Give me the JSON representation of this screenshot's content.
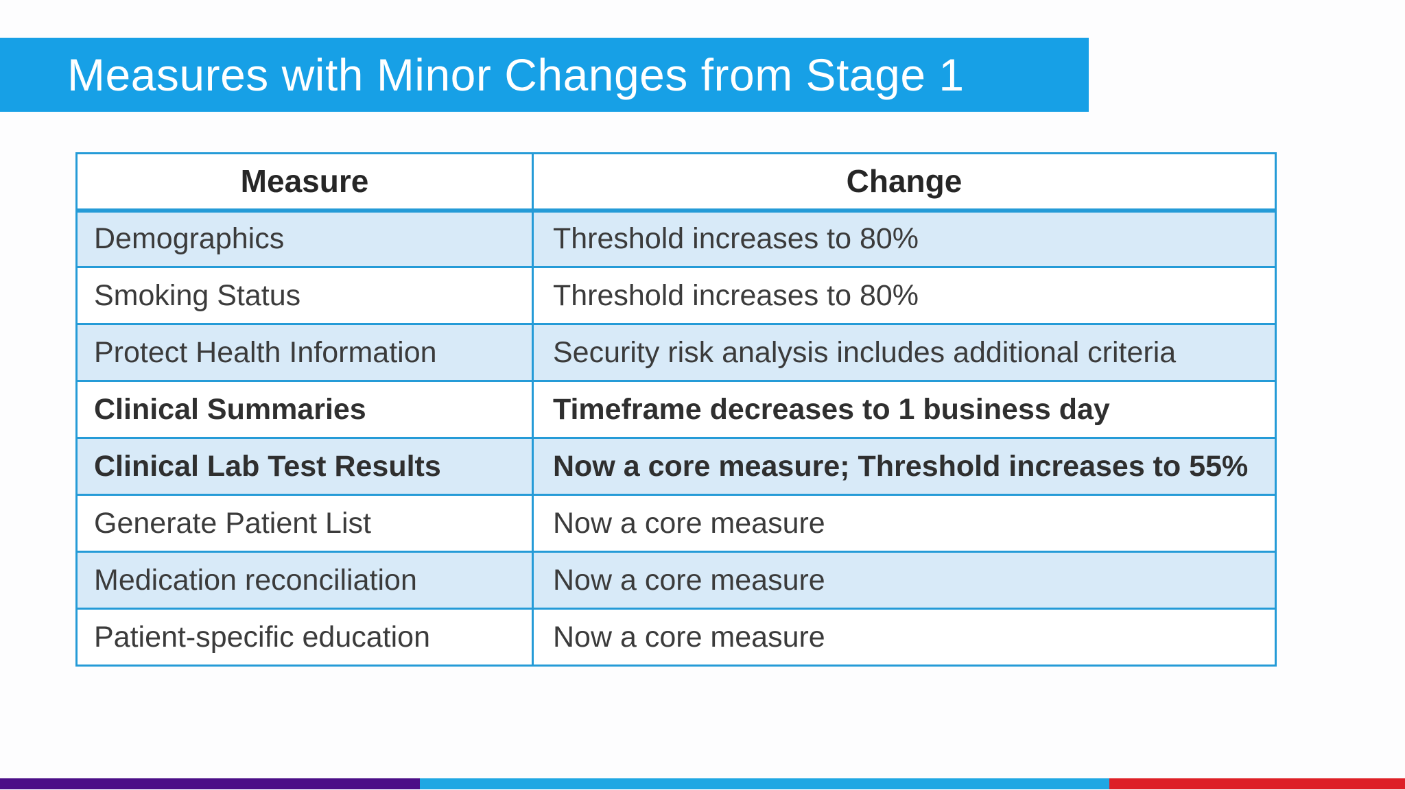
{
  "slide": {
    "title": "Measures with Minor Changes from Stage 1",
    "colors": {
      "banner_blue": "#17A0E6",
      "table_border_blue": "#259BD7",
      "row_fill_light_blue": "#D8EAF8",
      "body_text": "#3B3B3B",
      "header_text": "#262626",
      "stripe_purple": "#4B0E87",
      "stripe_blue": "#1FA7E3",
      "stripe_red": "#DD2027"
    },
    "table": {
      "headers": [
        "Measure",
        "Change"
      ],
      "rows": [
        {
          "measure": "Demographics",
          "change": "Threshold increases to 80%",
          "emphasis": false
        },
        {
          "measure": "Smoking Status",
          "change": "Threshold increases to 80%",
          "emphasis": false
        },
        {
          "measure": "Protect Health Information",
          "change": "Security risk analysis includes additional criteria",
          "emphasis": false
        },
        {
          "measure": "Clinical Summaries",
          "change": "Timeframe decreases to 1 business day",
          "emphasis": true
        },
        {
          "measure": "Clinical Lab Test Results",
          "change": "Now a core measure; Threshold increases to 55%",
          "emphasis": true
        },
        {
          "measure": "Generate Patient List",
          "change": "Now a core measure",
          "emphasis": false
        },
        {
          "measure": "Medication reconciliation",
          "change": "Now a core measure",
          "emphasis": false
        },
        {
          "measure": "Patient-specific education",
          "change": "Now a core measure",
          "emphasis": false
        }
      ]
    }
  }
}
